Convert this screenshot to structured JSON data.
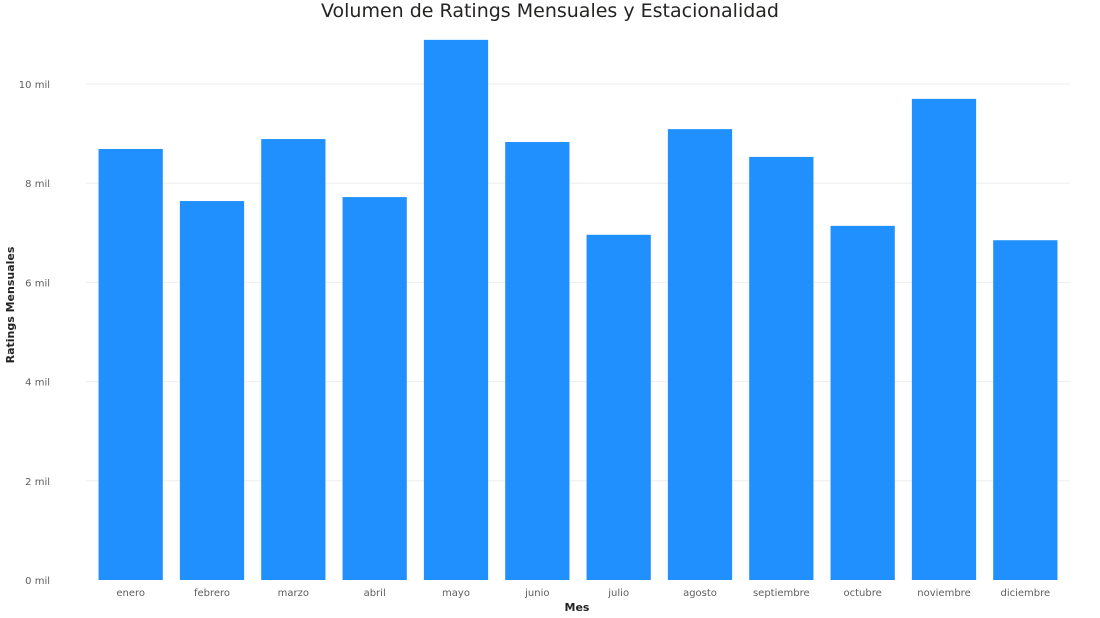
{
  "chart_data": {
    "type": "bar",
    "title": "Volumen de Ratings Mensuales y Estacionalidad",
    "xlabel": "Mes",
    "ylabel": "Ratings Mensuales",
    "categories": [
      "enero",
      "febrero",
      "marzo",
      "abril",
      "mayo",
      "junio",
      "julio",
      "agosto",
      "septiembre",
      "octubre",
      "noviembre",
      "diciembre"
    ],
    "values": [
      8690,
      7640,
      8890,
      7720,
      10890,
      8830,
      6960,
      9090,
      8530,
      7140,
      9700,
      6850
    ],
    "ylim": [
      0,
      11000
    ],
    "yticks": [
      0,
      2000,
      4000,
      6000,
      8000,
      10000
    ],
    "ytick_labels": [
      "0 mil",
      "2 mil",
      "4 mil",
      "6 mil",
      "8 mil",
      "10 mil"
    ],
    "grid": true,
    "bar_color": "#2090FF"
  }
}
